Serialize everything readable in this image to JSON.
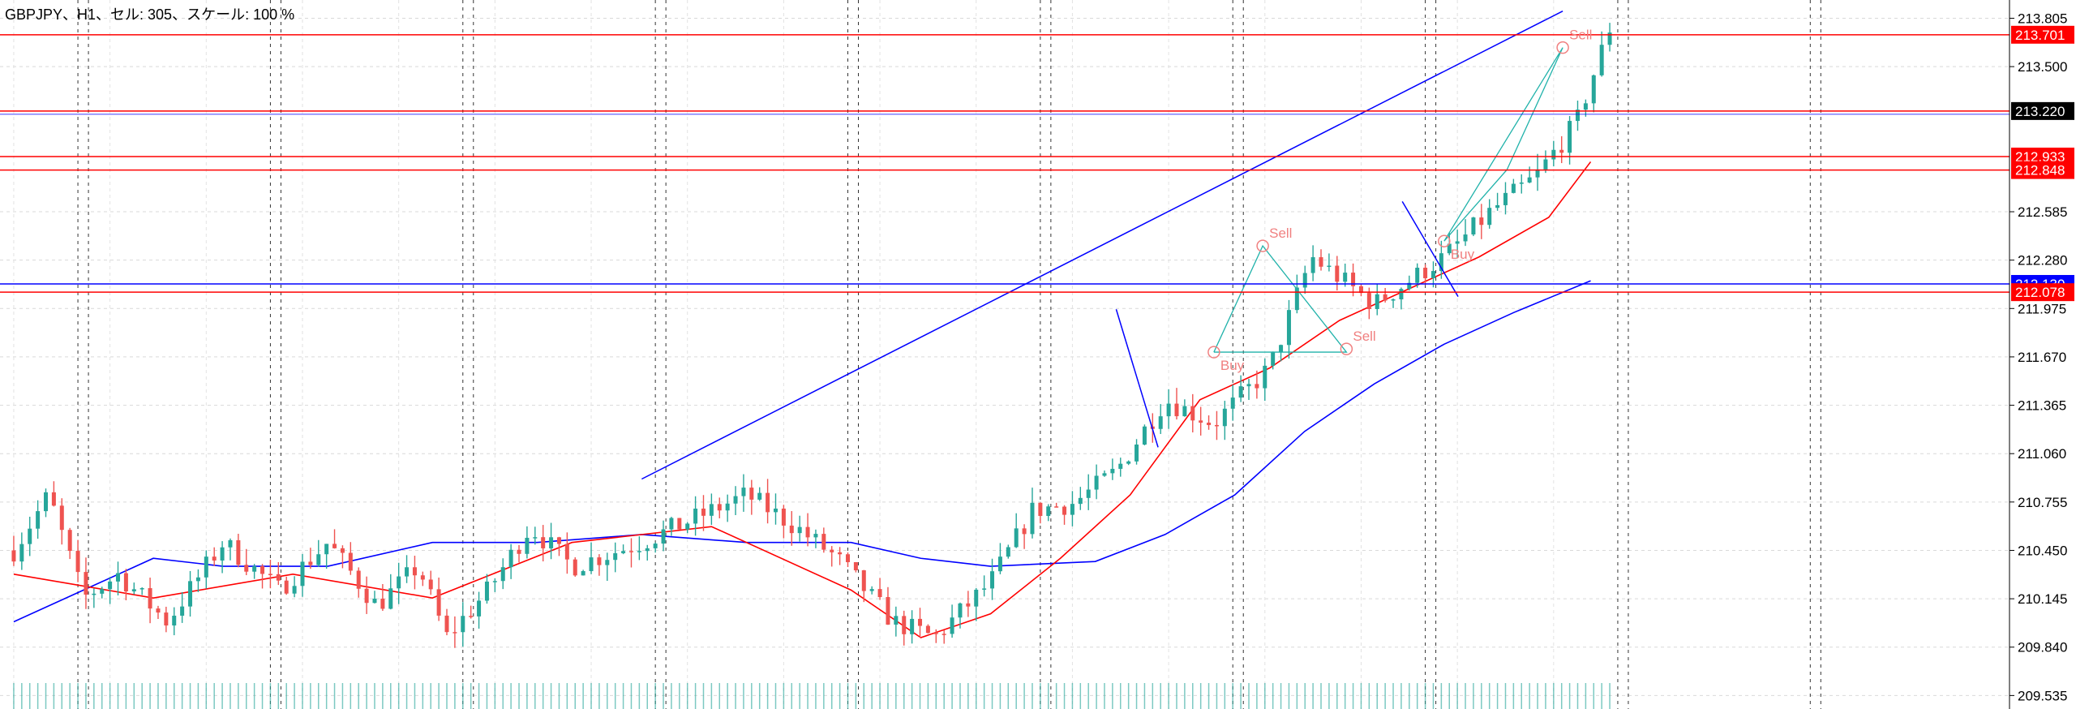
{
  "header": {
    "title": "GBPJPY、H1、セル: 305、スケール: 100 %"
  },
  "colors": {
    "bull": "#26a69a",
    "bear": "#ef5350",
    "ma_fast": "#ff0000",
    "ma_slow": "#0000ff",
    "level_red": "#ff0000",
    "level_blue": "#0000ff",
    "price_bg": "#000000",
    "pattern": "#20b2aa",
    "signal": "#f08080"
  },
  "chart_data": {
    "type": "candlestick",
    "symbol": "GBPJPY",
    "timeframe": "H1",
    "ylim": [
      209.45,
      213.92
    ],
    "y_ticks": [
      213.805,
      213.5,
      212.585,
      212.28,
      211.975,
      211.67,
      211.365,
      211.06,
      210.755,
      210.45,
      210.145,
      209.84,
      209.535
    ],
    "y_tick_labels": [
      "213.805",
      "213.500",
      "212.585",
      "212.280",
      "211.975",
      "211.670",
      "211.365",
      "211.060",
      "210.755",
      "210.450",
      "210.145",
      "209.840",
      "209.535"
    ],
    "grid": true,
    "bars_count": 200,
    "price_path": [
      [
        0,
        210.45
      ],
      [
        5,
        210.8
      ],
      [
        10,
        210.15
      ],
      [
        15,
        210.3
      ],
      [
        22,
        210.0
      ],
      [
        30,
        210.5
      ],
      [
        38,
        210.2
      ],
      [
        45,
        210.5
      ],
      [
        52,
        210.1
      ],
      [
        58,
        210.35
      ],
      [
        62,
        209.9
      ],
      [
        68,
        210.2
      ],
      [
        74,
        210.6
      ],
      [
        80,
        210.35
      ],
      [
        90,
        210.5
      ],
      [
        100,
        210.7
      ],
      [
        105,
        210.8
      ],
      [
        112,
        210.6
      ],
      [
        118,
        210.4
      ],
      [
        126,
        210.0
      ],
      [
        132,
        209.9
      ],
      [
        140,
        210.25
      ],
      [
        146,
        210.7
      ],
      [
        152,
        210.75
      ],
      [
        158,
        210.95
      ],
      [
        165,
        211.4
      ],
      [
        172,
        211.25
      ],
      [
        180,
        211.6
      ],
      [
        186,
        212.3
      ],
      [
        195,
        212.0
      ],
      [
        205,
        212.3
      ],
      [
        212,
        212.6
      ],
      [
        218,
        212.8
      ],
      [
        224,
        213.15
      ],
      [
        230,
        213.9
      ]
    ],
    "ma_fast": [
      [
        0,
        210.3
      ],
      [
        20,
        210.15
      ],
      [
        40,
        210.3
      ],
      [
        60,
        210.15
      ],
      [
        80,
        210.5
      ],
      [
        100,
        210.6
      ],
      [
        120,
        210.2
      ],
      [
        130,
        209.9
      ],
      [
        140,
        210.05
      ],
      [
        150,
        210.4
      ],
      [
        160,
        210.8
      ],
      [
        170,
        211.4
      ],
      [
        180,
        211.6
      ],
      [
        190,
        211.9
      ],
      [
        200,
        212.1
      ],
      [
        210,
        212.3
      ],
      [
        220,
        212.55
      ],
      [
        226,
        212.9
      ]
    ],
    "ma_slow": [
      [
        0,
        210.0
      ],
      [
        10,
        210.2
      ],
      [
        20,
        210.4
      ],
      [
        30,
        210.35
      ],
      [
        45,
        210.35
      ],
      [
        60,
        210.5
      ],
      [
        75,
        210.5
      ],
      [
        90,
        210.55
      ],
      [
        105,
        210.5
      ],
      [
        120,
        210.5
      ],
      [
        130,
        210.4
      ],
      [
        140,
        210.35
      ],
      [
        155,
        210.38
      ],
      [
        165,
        210.55
      ],
      [
        175,
        210.8
      ],
      [
        185,
        211.2
      ],
      [
        195,
        211.5
      ],
      [
        205,
        211.75
      ],
      [
        215,
        211.95
      ],
      [
        226,
        212.15
      ]
    ],
    "channel_line": {
      "from": [
        90,
        210.9
      ],
      "to": [
        222,
        213.85
      ]
    },
    "blue_segments": [
      {
        "from": [
          158,
          211.97
        ],
        "to": [
          164,
          211.1
        ]
      },
      {
        "from": [
          199,
          212.65
        ],
        "to": [
          207,
          212.05
        ]
      }
    ],
    "pattern_lines": [
      [
        [
          172,
          211.7
        ],
        [
          179,
          212.37
        ],
        [
          191,
          211.7
        ],
        [
          172,
          211.7
        ]
      ],
      [
        [
          205,
          212.4
        ],
        [
          222,
          213.62
        ],
        [
          214,
          212.85
        ],
        [
          205,
          212.4
        ]
      ]
    ],
    "signals": [
      {
        "text": "Sell",
        "x": 179,
        "y": 212.37,
        "dir": "sell"
      },
      {
        "text": "Buy",
        "x": 172,
        "y": 211.7,
        "dir": "buy"
      },
      {
        "text": "Sell",
        "x": 191,
        "y": 211.72,
        "dir": "sell"
      },
      {
        "text": "Buy",
        "x": 205,
        "y": 212.4,
        "dir": "buy"
      },
      {
        "text": "Sell",
        "x": 222,
        "y": 213.62,
        "dir": "sell"
      }
    ],
    "levels": [
      {
        "price": 213.701,
        "label": "213.701",
        "color": "#ff0000",
        "bg": "#ff0000"
      },
      {
        "price": 213.22,
        "label": "213.220",
        "color": "#ff0000",
        "bg": "#000000"
      },
      {
        "price": 212.933,
        "label": "212.933",
        "color": "#ff0000",
        "bg": "#ff0000"
      },
      {
        "price": 212.848,
        "label": "212.848",
        "color": "#ff0000",
        "bg": "#ff0000"
      },
      {
        "price": 212.13,
        "label": "212.130",
        "color": "#0000ff",
        "bg": "#0000ff"
      },
      {
        "price": 212.078,
        "label": "212.078",
        "color": "#ff0000",
        "bg": "#ff0000"
      }
    ],
    "current_price": 213.22
  }
}
